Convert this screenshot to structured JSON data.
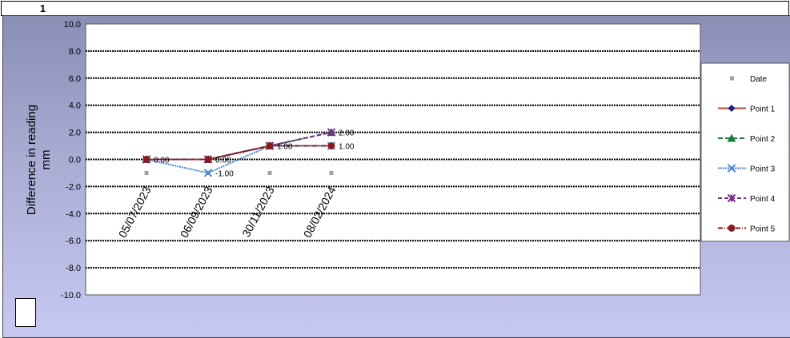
{
  "header": {
    "cell_label": "1"
  },
  "chart_data": {
    "type": "line",
    "ylabel": "Difference in reading mm",
    "ylabel_lines": [
      "Difference in reading",
      "mm"
    ],
    "ylim": [
      -10,
      10
    ],
    "yticks": [
      10,
      8,
      6,
      4,
      2,
      0,
      -2,
      -4,
      -6,
      -8,
      -10
    ],
    "ytick_labels": [
      "10.0",
      "8.0",
      "6.0",
      "4.0",
      "2.0",
      "0.0",
      "-2.0",
      "-4.0",
      "-6.0",
      "-8.0",
      "-10.0"
    ],
    "categories": [
      "05/07/2023",
      "06/09/2023",
      "30/11/2023",
      "08/02/2024"
    ],
    "grid": true,
    "legend_position": "right",
    "date_marker": {
      "name": "Date",
      "value": -1,
      "color": "#a0a0a0"
    },
    "series": [
      {
        "name": "Point 1",
        "values": [
          0,
          0,
          1,
          1
        ],
        "color": "#b24a3a",
        "marker": "diamond",
        "marker_color": "#1f1f7a",
        "dash": ""
      },
      {
        "name": "Point 2",
        "values": [
          0,
          0,
          1,
          2
        ],
        "color": "#1f7a3a",
        "marker": "triangle",
        "marker_color": "#1f7a3a",
        "dash": "6,3"
      },
      {
        "name": "Point 3",
        "values": [
          0,
          -1,
          1,
          1
        ],
        "color": "#4a86d8",
        "marker": "x",
        "marker_color": "#4a86d8",
        "dash": "2,1"
      },
      {
        "name": "Point 4",
        "values": [
          0,
          0,
          1,
          2
        ],
        "color": "#7a2a8a",
        "marker": "star",
        "marker_color": "#7a2a8a",
        "dash": "5,3"
      },
      {
        "name": "Point 5",
        "values": [
          0,
          0,
          1,
          1
        ],
        "color": "#8a1a1a",
        "marker": "circle",
        "marker_color": "#8a1a1a",
        "dash": "6,2,1,2"
      }
    ],
    "data_labels": [
      {
        "category": 0,
        "value": 0,
        "text": "0.00"
      },
      {
        "category": 1,
        "value": 0,
        "text": "0.00"
      },
      {
        "category": 1,
        "value": -1,
        "text": "-1.00"
      },
      {
        "category": 2,
        "value": 1,
        "text": "1.00"
      },
      {
        "category": 3,
        "value": 2,
        "text": "2.00"
      },
      {
        "category": 3,
        "value": 1,
        "text": "1.00"
      }
    ]
  }
}
